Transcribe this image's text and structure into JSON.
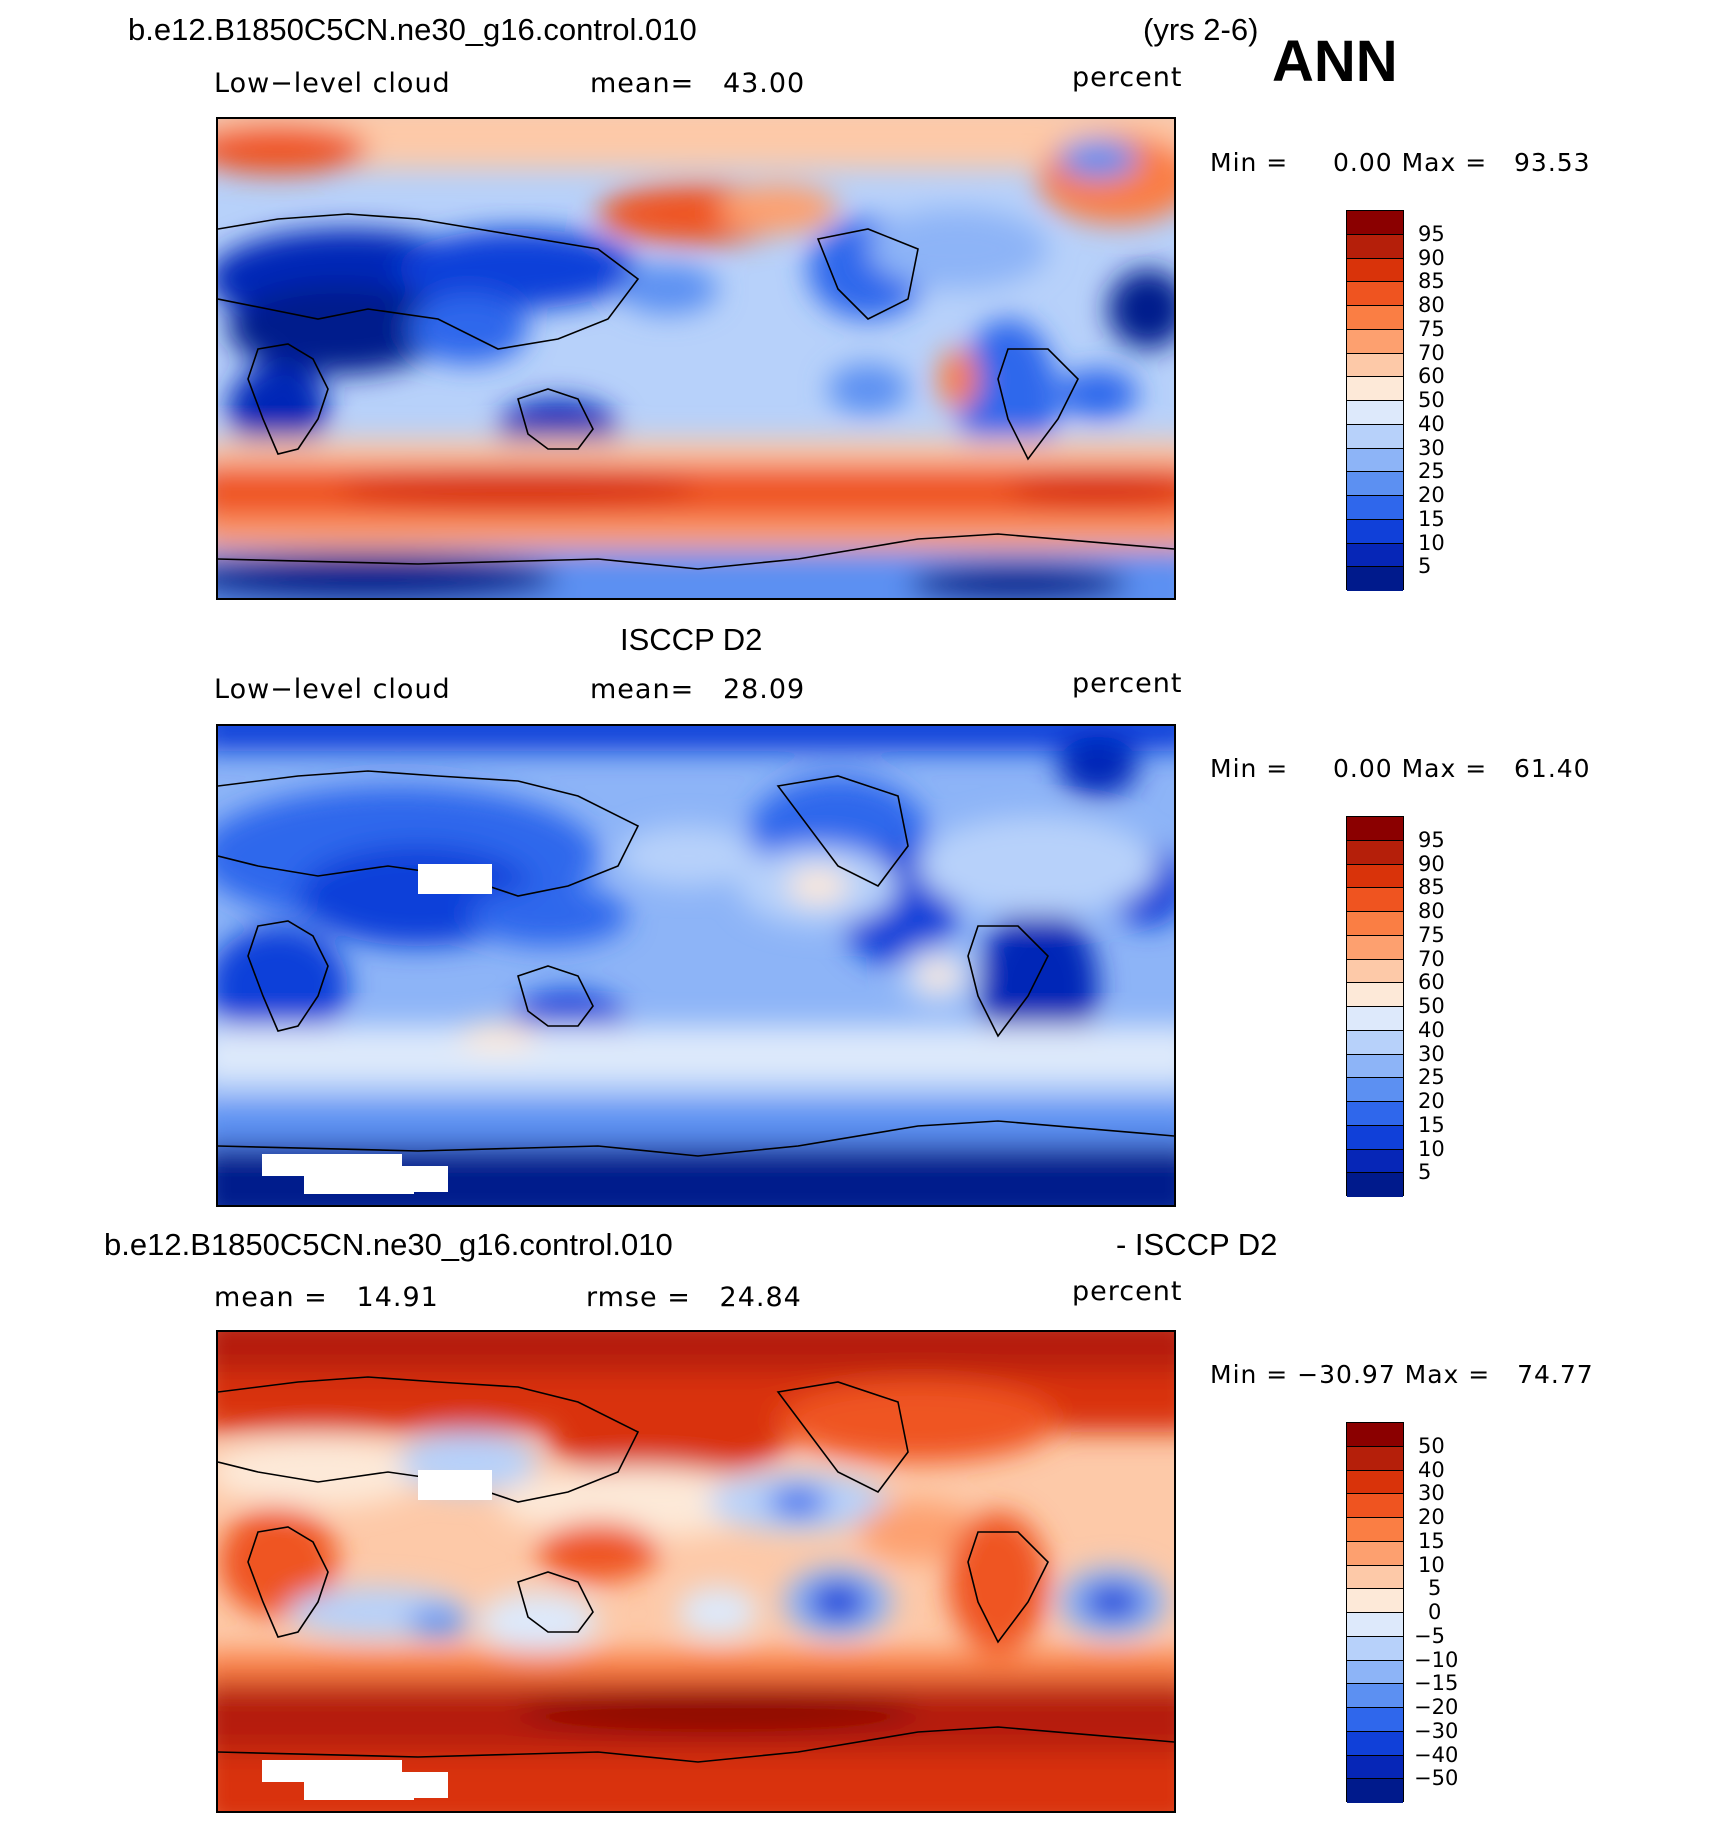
{
  "header": {
    "case_title": "b.e12.B1850C5CN.ne30_g16.control.010",
    "years": "(yrs 2-6)",
    "season": "ANN"
  },
  "panels": [
    {
      "id": "model",
      "field": "Low−level cloud",
      "stat1": "mean=   43.00",
      "stat2": "",
      "units": "percent",
      "minmax": "Min =     0.00 Max =   93.53",
      "levels": [
        "95",
        "90",
        "85",
        "80",
        "75",
        "70",
        "60",
        "50",
        "40",
        "30",
        "25",
        "20",
        "15",
        "10",
        "5"
      ],
      "colors": [
        "#8b0000",
        "#b51f0a",
        "#d9330a",
        "#ef5420",
        "#fa7e44",
        "#fda06f",
        "#fdc9a8",
        "#fde9d8",
        "#dde9fb",
        "#b7d1fa",
        "#8db4f7",
        "#5c90f2",
        "#2f67ec",
        "#1040d9",
        "#0626b7",
        "#001a8c"
      ]
    },
    {
      "id": "obs",
      "panel_title": "ISCCP D2",
      "field": "Low−level cloud",
      "stat1": "mean=   28.09",
      "stat2": "",
      "units": "percent",
      "minmax": "Min =     0.00 Max =   61.40",
      "levels": [
        "95",
        "90",
        "85",
        "80",
        "75",
        "70",
        "60",
        "50",
        "40",
        "30",
        "25",
        "20",
        "15",
        "10",
        "5"
      ],
      "colors": [
        "#8b0000",
        "#b51f0a",
        "#d9330a",
        "#ef5420",
        "#fa7e44",
        "#fda06f",
        "#fdc9a8",
        "#fde9d8",
        "#dde9fb",
        "#b7d1fa",
        "#8db4f7",
        "#5c90f2",
        "#2f67ec",
        "#1040d9",
        "#0626b7",
        "#001a8c"
      ]
    },
    {
      "id": "diff",
      "case_title": "b.e12.B1850C5CN.ne30_g16.control.010",
      "minus_title": "- ISCCP D2",
      "field": "",
      "stat1": "mean =   14.91",
      "stat2": "rmse =   24.84",
      "units": "percent",
      "minmax": "Min = −30.97 Max =   74.77",
      "levels": [
        "50",
        "40",
        "30",
        "20",
        "15",
        "10",
        "5",
        "0",
        "−5",
        "−10",
        "−15",
        "−20",
        "−30",
        "−40",
        "−50"
      ],
      "colors": [
        "#8b0000",
        "#b51f0a",
        "#d9330a",
        "#ef5420",
        "#fa7e44",
        "#fda06f",
        "#fdc9a8",
        "#fde9d8",
        "#dde9fb",
        "#b7d1fa",
        "#8db4f7",
        "#5c90f2",
        "#2f67ec",
        "#1040d9",
        "#0626b7",
        "#001a8c"
      ]
    }
  ]
}
